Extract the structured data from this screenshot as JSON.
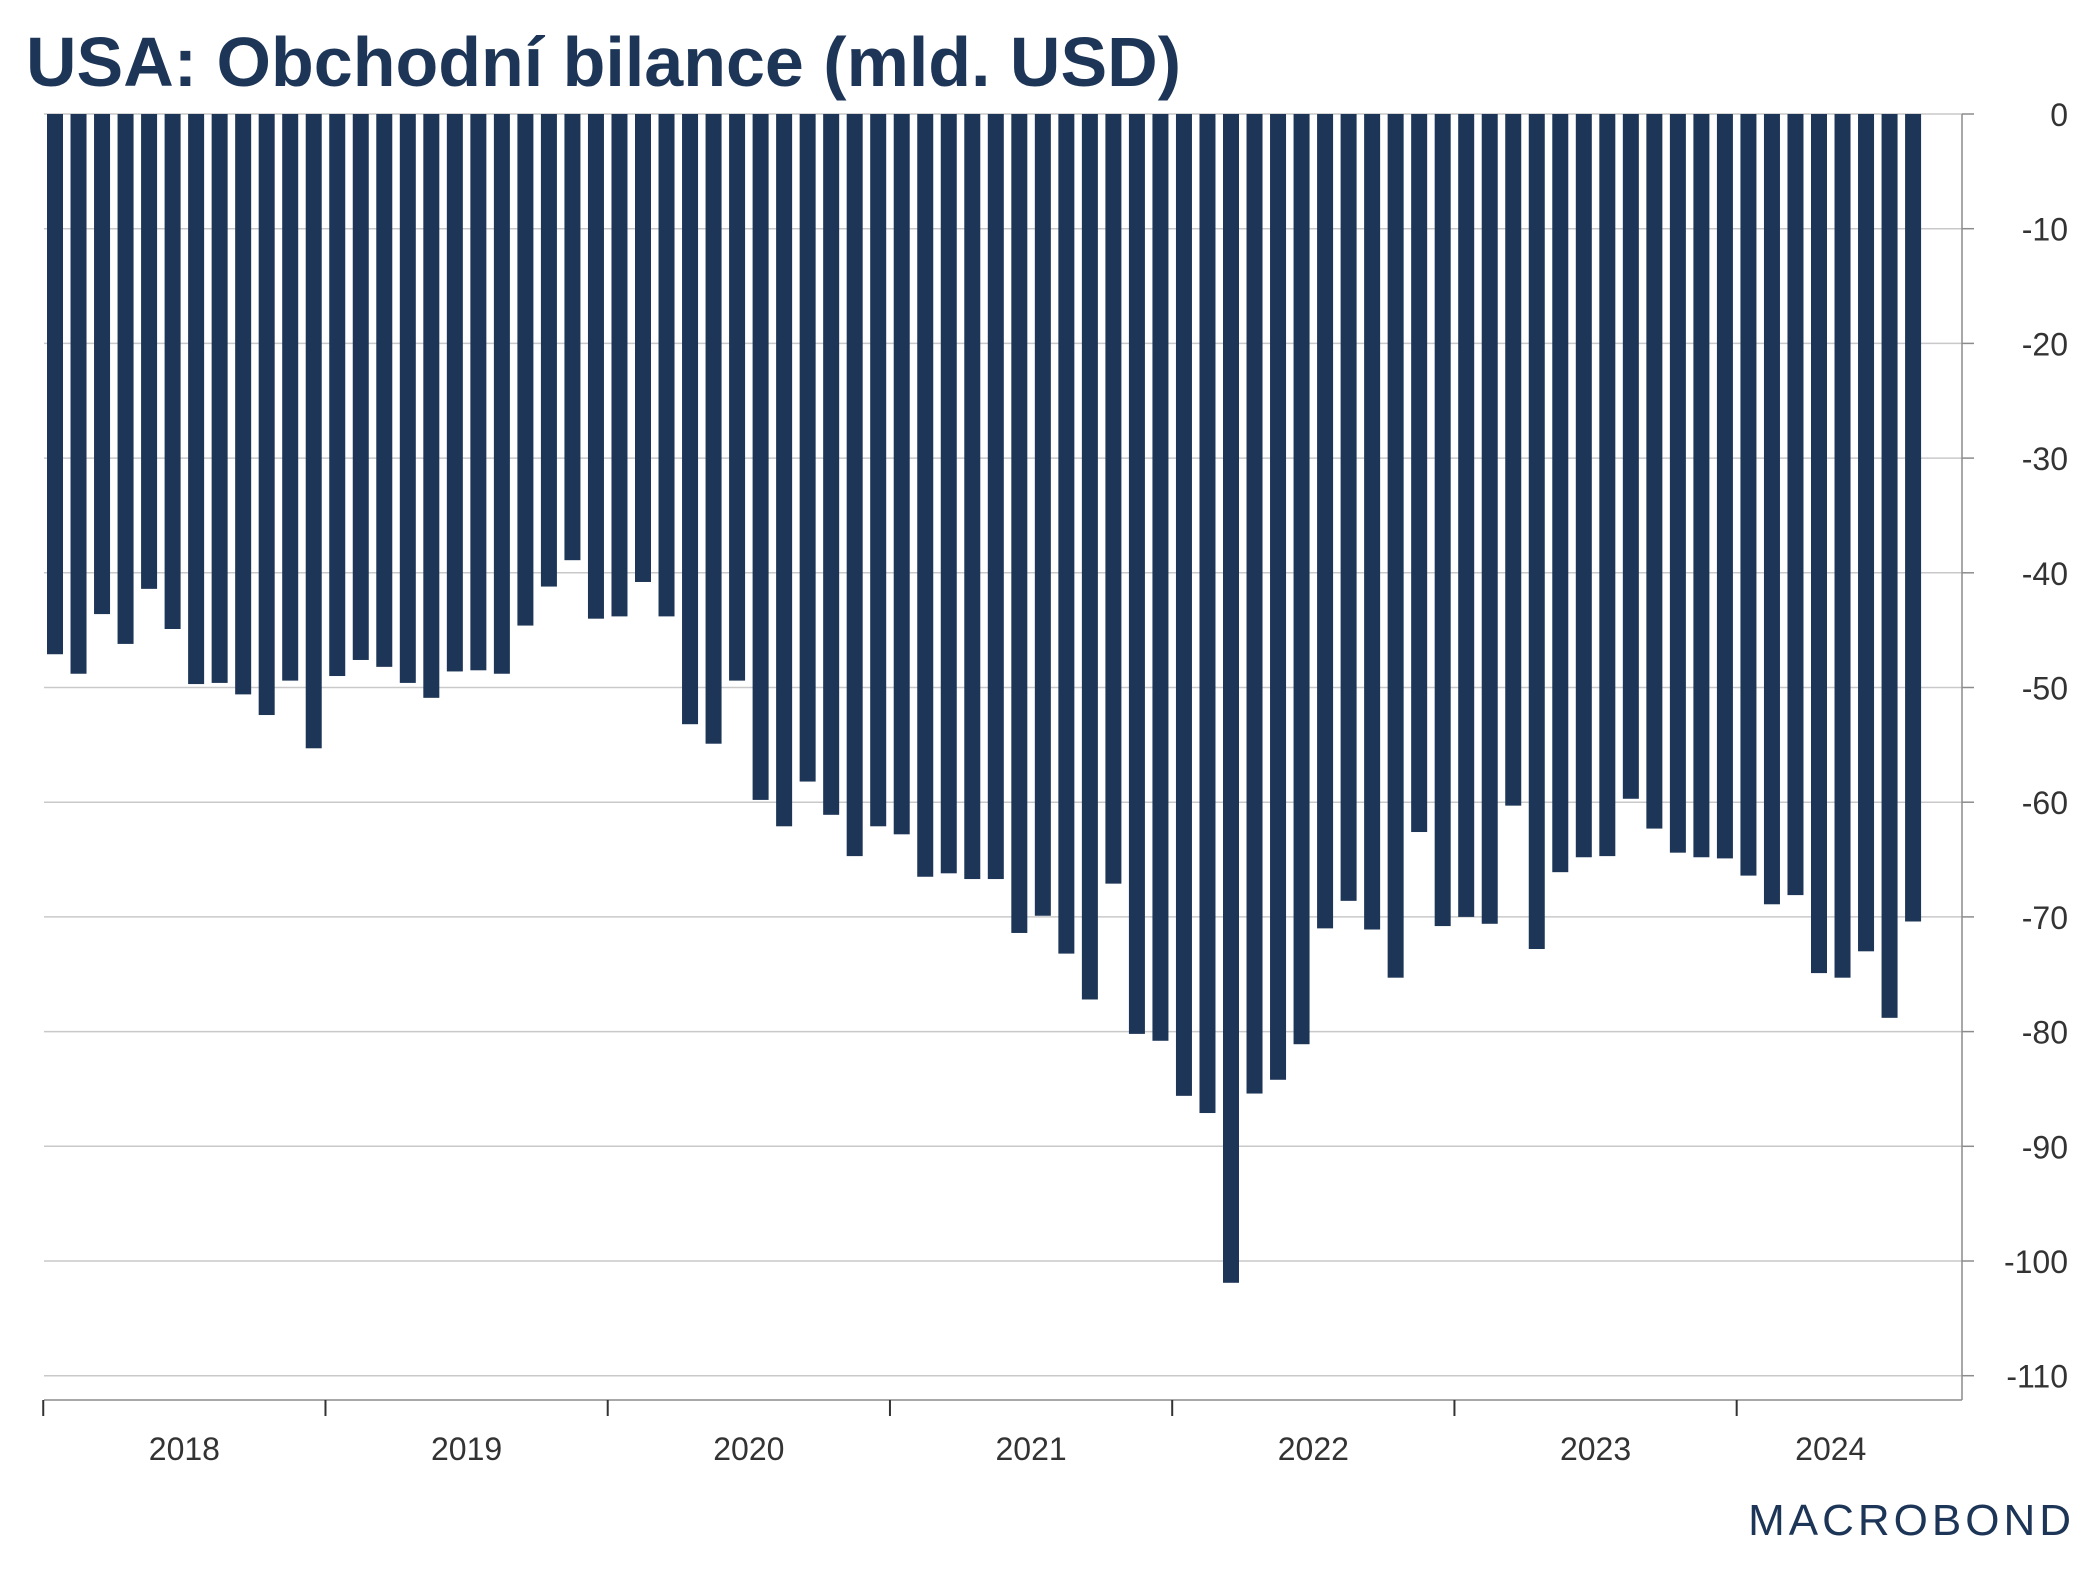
{
  "header": {
    "title": "USA: Obchodní bilance (mld. USD)"
  },
  "brand": {
    "name": "MACROBOND"
  },
  "colors": {
    "bar": "#1d3557",
    "grid": "#c9c9c9",
    "axis": "#8c8c8c",
    "text": "#333333"
  },
  "chart_data": {
    "type": "bar",
    "title": "USA: Obchodní bilance (mld. USD)",
    "xlabel": "",
    "ylabel": "",
    "ylim": [
      -112,
      0
    ],
    "y_axis_side": "right",
    "y_ticks": [
      0,
      -10,
      -20,
      -30,
      -40,
      -50,
      -60,
      -70,
      -80,
      -90,
      -100,
      -110
    ],
    "y_tick_labels": [
      "0",
      "-10",
      "-20",
      "-30",
      "-40",
      "-50",
      "-60",
      "-70",
      "-80",
      "-90",
      "-100",
      "-110"
    ],
    "grid": true,
    "x_tick_labels": [
      "2018",
      "2019",
      "2020",
      "2021",
      "2022",
      "2023",
      "2024"
    ],
    "values": [
      -47.1,
      -48.8,
      -43.6,
      -46.2,
      -41.4,
      -44.9,
      -49.7,
      -49.6,
      -50.6,
      -52.4,
      -49.4,
      -55.3,
      -49.0,
      -47.6,
      -48.2,
      -49.6,
      -50.9,
      -48.6,
      -48.5,
      -48.8,
      -44.6,
      -41.2,
      -38.9,
      -44.0,
      -43.8,
      -40.8,
      -43.8,
      -53.2,
      -54.9,
      -49.4,
      -59.8,
      -62.1,
      -58.2,
      -61.1,
      -64.7,
      -62.1,
      -62.8,
      -66.5,
      -66.2,
      -66.7,
      -66.7,
      -71.4,
      -69.9,
      -73.2,
      -77.2,
      -67.1,
      -80.2,
      -80.8,
      -85.6,
      -87.1,
      -101.9,
      -85.4,
      -84.2,
      -81.1,
      -71.0,
      -68.6,
      -71.1,
      -75.3,
      -62.6,
      -70.8,
      -70.0,
      -70.6,
      -60.3,
      -72.8,
      -66.1,
      -64.8,
      -64.7,
      -59.7,
      -62.3,
      -64.4,
      -64.8,
      -64.9,
      -66.4,
      -68.9,
      -68.1,
      -74.9,
      -75.3,
      -73.0,
      -78.8,
      -70.4
    ]
  }
}
